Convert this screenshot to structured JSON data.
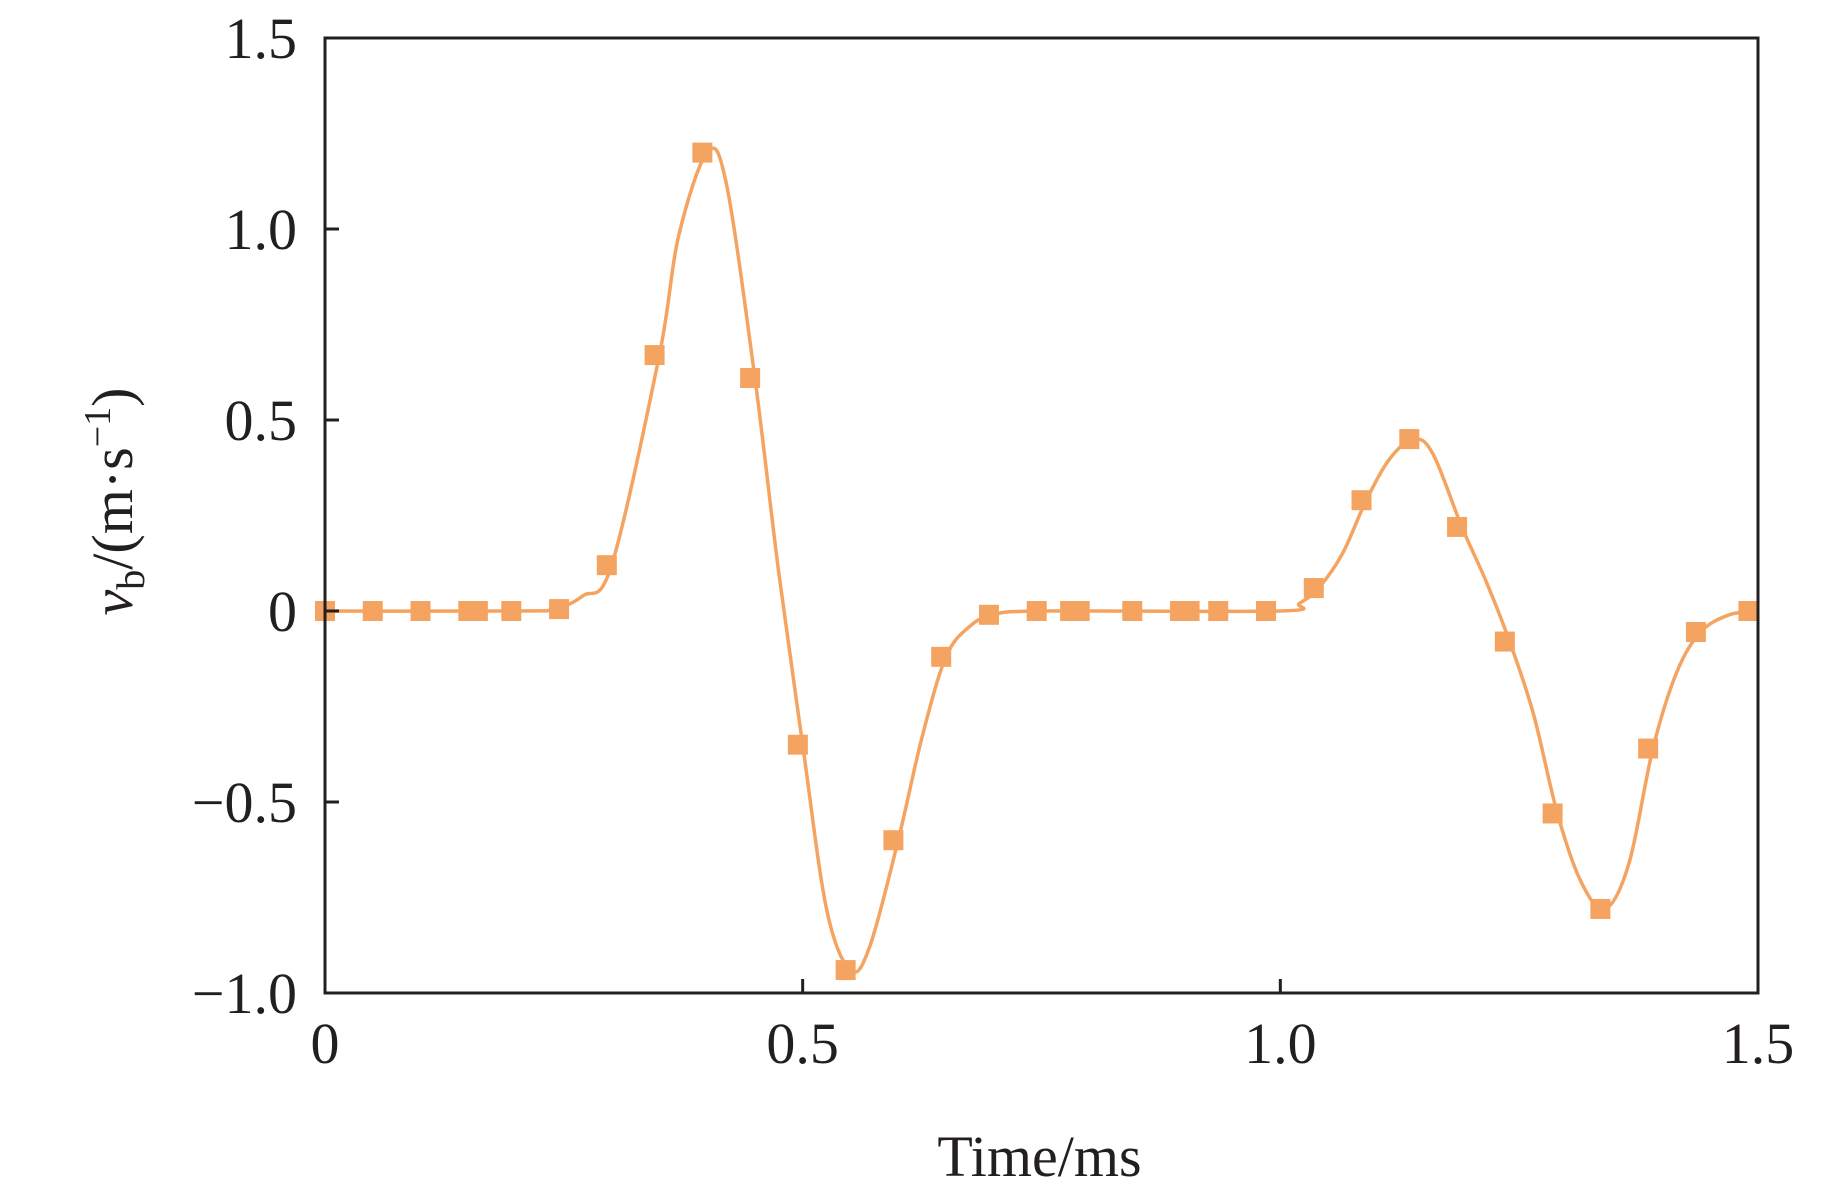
{
  "chart_data": {
    "type": "line",
    "title": "",
    "xlabel": "Time/ms",
    "ylabel": {
      "symbol": "v",
      "subscript": "b",
      "unit_prefix": "/(m·s",
      "unit_superscript": "−1",
      "unit_suffix": ")"
    },
    "xlim": [
      0,
      1.5
    ],
    "ylim": [
      -1.0,
      1.5
    ],
    "x_ticks": [
      {
        "value": 0,
        "label": "0"
      },
      {
        "value": 0.5,
        "label": "0.5"
      },
      {
        "value": 1.0,
        "label": "1.0"
      },
      {
        "value": 1.5,
        "label": "1.5"
      }
    ],
    "y_ticks": [
      {
        "value": -1.0,
        "label": "−1.0"
      },
      {
        "value": -0.5,
        "label": "−0.5"
      },
      {
        "value": 0,
        "label": "0"
      },
      {
        "value": 0.5,
        "label": "0.5"
      },
      {
        "value": 1.0,
        "label": "1.0"
      },
      {
        "value": 1.5,
        "label": "1.5"
      }
    ],
    "grid": false,
    "legend": "none",
    "series": [
      {
        "color": "#f4a460",
        "marker": "square",
        "curve": [
          [
            0,
            0
          ],
          [
            0.2,
            0
          ],
          [
            0.24,
            0.005
          ],
          [
            0.27,
            0.04
          ],
          [
            0.3,
            0.12
          ],
          [
            0.35,
            0.67
          ],
          [
            0.37,
            0.98
          ],
          [
            0.4,
            1.2
          ],
          [
            0.42,
            1.12
          ],
          [
            0.45,
            0.61
          ],
          [
            0.475,
            0.1
          ],
          [
            0.5,
            -0.35
          ],
          [
            0.525,
            -0.78
          ],
          [
            0.55,
            -0.94
          ],
          [
            0.57,
            -0.88
          ],
          [
            0.6,
            -0.6
          ],
          [
            0.625,
            -0.33
          ],
          [
            0.65,
            -0.12
          ],
          [
            0.675,
            -0.04
          ],
          [
            0.7,
            -0.01
          ],
          [
            0.75,
            0
          ],
          [
            1.0,
            0
          ],
          [
            1.02,
            0.02
          ],
          [
            1.04,
            0.06
          ],
          [
            1.065,
            0.15
          ],
          [
            1.09,
            0.29
          ],
          [
            1.115,
            0.4
          ],
          [
            1.14,
            0.45
          ],
          [
            1.16,
            0.41
          ],
          [
            1.19,
            0.22
          ],
          [
            1.215,
            0.08
          ],
          [
            1.24,
            -0.08
          ],
          [
            1.265,
            -0.27
          ],
          [
            1.29,
            -0.53
          ],
          [
            1.315,
            -0.71
          ],
          [
            1.34,
            -0.78
          ],
          [
            1.365,
            -0.66
          ],
          [
            1.39,
            -0.36
          ],
          [
            1.415,
            -0.16
          ],
          [
            1.44,
            -0.055
          ],
          [
            1.47,
            -0.01
          ],
          [
            1.5,
            0
          ]
        ],
        "markers": [
          [
            0,
            0
          ],
          [
            0.05,
            0
          ],
          [
            0.1,
            0
          ],
          [
            0.15,
            0
          ],
          [
            0.16,
            0
          ],
          [
            0.195,
            0
          ],
          [
            0.245,
            0.005
          ],
          [
            0.295,
            0.12
          ],
          [
            0.345,
            0.67
          ],
          [
            0.395,
            1.2
          ],
          [
            0.445,
            0.61
          ],
          [
            0.495,
            -0.35
          ],
          [
            0.545,
            -0.94
          ],
          [
            0.595,
            -0.6
          ],
          [
            0.645,
            -0.12
          ],
          [
            0.695,
            -0.01
          ],
          [
            0.745,
            0
          ],
          [
            0.78,
            0
          ],
          [
            0.79,
            0
          ],
          [
            0.845,
            0
          ],
          [
            0.895,
            0
          ],
          [
            0.905,
            0
          ],
          [
            0.935,
            0
          ],
          [
            0.985,
            0
          ],
          [
            1.035,
            0.06
          ],
          [
            1.085,
            0.29
          ],
          [
            1.135,
            0.45
          ],
          [
            1.185,
            0.22
          ],
          [
            1.235,
            -0.08
          ],
          [
            1.285,
            -0.53
          ],
          [
            1.335,
            -0.78
          ],
          [
            1.385,
            -0.36
          ],
          [
            1.435,
            -0.055
          ],
          [
            1.49,
            0
          ]
        ]
      }
    ]
  }
}
